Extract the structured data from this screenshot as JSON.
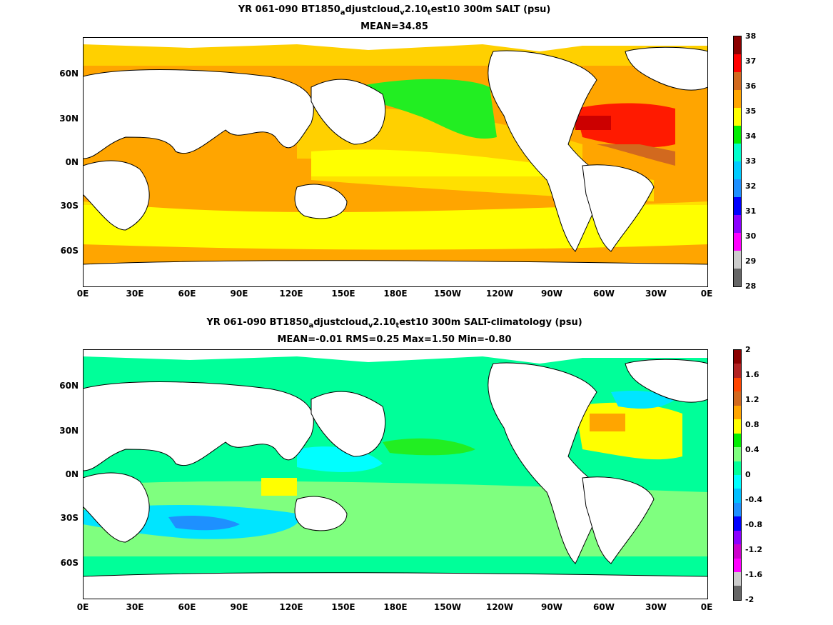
{
  "panel_top": {
    "title_pre": "YR 061-090 BT1850",
    "title_sub_a": "a",
    "title_mid": "djustcloud",
    "title_sub_v": "v",
    "title_mid2": "2.10",
    "title_sub_t": "t",
    "title_post": "est10 300m SALT (psu)",
    "stats": "MEAN=34.85",
    "colorbar_labels": [
      "38",
      "37",
      "36",
      "35",
      "34",
      "33",
      "32",
      "31",
      "30",
      "29",
      "28"
    ],
    "colorbar_colors": [
      "#8b0000",
      "#ff0000",
      "#d2691e",
      "#ffa500",
      "#ffff00",
      "#00ee00",
      "#00ffcc",
      "#00ccff",
      "#1e90ff",
      "#0000ff",
      "#8b00ff",
      "#ff00ff",
      "#cccccc",
      "#666666"
    ]
  },
  "panel_bottom": {
    "title_pre": "YR 061-090 BT1850",
    "title_sub_a": "a",
    "title_mid": "djustcloud",
    "title_sub_v": "v",
    "title_mid2": "2.10",
    "title_sub_t": "t",
    "title_post": "est10 300m SALT-climatology (psu)",
    "stats": "MEAN=-0.01   RMS=0.25   Max=1.50   Min=-0.80",
    "colorbar_labels": [
      "2",
      "1.6",
      "1.2",
      "0.8",
      "0.4",
      "0",
      "-0.4",
      "-0.8",
      "-1.2",
      "-1.6",
      "-2"
    ],
    "colorbar_colors": [
      "#8b0000",
      "#b22222",
      "#ff4500",
      "#d2691e",
      "#ffa500",
      "#ffff00",
      "#00ee00",
      "#7fff7f",
      "#00ff99",
      "#00ffff",
      "#00bfff",
      "#1e90ff",
      "#0000ff",
      "#8b00ff",
      "#cc00cc",
      "#ff00ff",
      "#cccccc",
      "#666666"
    ]
  },
  "axes": {
    "lat_labels": [
      "60N",
      "30N",
      "0N",
      "30S",
      "60S"
    ],
    "lon_labels": [
      "0E",
      "30E",
      "60E",
      "90E",
      "120E",
      "150E",
      "180E",
      "150W",
      "120W",
      "90W",
      "60W",
      "30W",
      "0E"
    ]
  }
}
